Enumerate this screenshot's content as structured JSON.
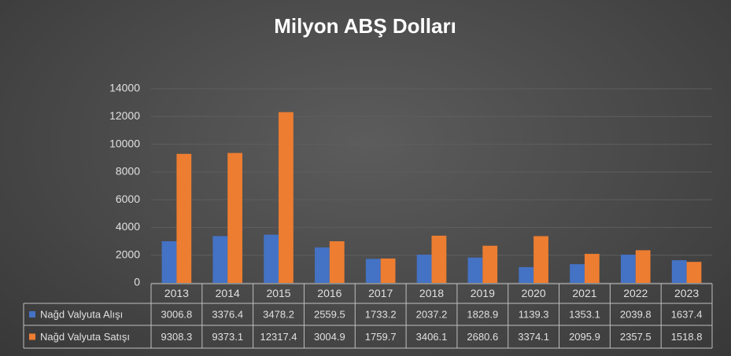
{
  "chart_data": {
    "type": "bar",
    "title": "Milyon ABŞ Dolları",
    "categories": [
      "2013",
      "2014",
      "2015",
      "2016",
      "2017",
      "2018",
      "2019",
      "2020",
      "2021",
      "2022",
      "2023"
    ],
    "series": [
      {
        "name": "Nağd Valyuta Alışı",
        "color": "#4472c4",
        "values": [
          3006.8,
          3376.4,
          3478.2,
          2559.5,
          1733.2,
          2037.2,
          1828.9,
          1139.3,
          1353.1,
          2039.8,
          1637.4
        ]
      },
      {
        "name": "Nağd Valyuta Satışı",
        "color": "#ed7d31",
        "values": [
          9308.3,
          9373.1,
          12317.4,
          3004.9,
          1759.7,
          3406.1,
          2680.6,
          3374.1,
          2095.9,
          2357.5,
          1518.8
        ]
      }
    ],
    "ylim": [
      0,
      14000
    ],
    "yticks": [
      0,
      2000,
      4000,
      6000,
      8000,
      10000,
      12000,
      14000
    ],
    "grid": true
  }
}
